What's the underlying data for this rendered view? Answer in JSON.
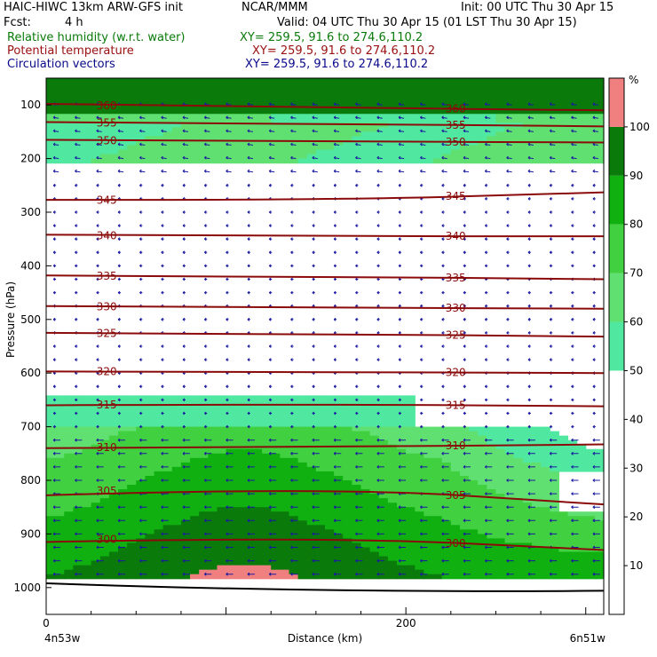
{
  "header": {
    "model": "HAIC-HIWC 13km ARW-GFS init",
    "org": "NCAR/MMM",
    "init": "Init: 00 UTC Thu 30 Apr 15",
    "fcst_label": "Fcst:",
    "fcst_value": "4 h",
    "valid": "Valid: 04 UTC Thu 30 Apr 15 (01 LST Thu 30 Apr 15)",
    "fields": [
      {
        "name": "Relative humidity (w.r.t. water)",
        "xy": "XY= 259.5, 91.6 to 274.6,110.2",
        "color": "#0a7a0a"
      },
      {
        "name": "Potential temperature",
        "xy": "XY= 259.5, 91.6 to 274.6,110.2",
        "color": "#9a1010"
      },
      {
        "name": "Circulation vectors",
        "xy": "XY= 259.5, 91.6 to 274.6,110.2",
        "color": "#0a0a8a"
      }
    ]
  },
  "chart_data": {
    "type": "cross-section",
    "title": "HAIC-HIWC 13km ARW-GFS init",
    "xlabel": "Distance (km)",
    "ylabel": "Pressure (hPa)",
    "xlim": [
      0,
      310
    ],
    "ylim": [
      50,
      1050
    ],
    "x_ticks": [
      0,
      200
    ],
    "y_ticks": [
      100,
      200,
      300,
      400,
      500,
      600,
      700,
      800,
      900,
      1000
    ],
    "x_end_labels": {
      "left": "4n53w",
      "right": "6n51w"
    },
    "colorbar": {
      "unit": "%",
      "ticks": [
        10,
        20,
        30,
        40,
        50,
        60,
        70,
        80,
        90,
        100
      ],
      "levels": [
        {
          "min": 0,
          "max": 50,
          "color": "#ffffff"
        },
        {
          "min": 50,
          "max": 60,
          "color": "#50e8a0"
        },
        {
          "min": 60,
          "max": 70,
          "color": "#60e070"
        },
        {
          "min": 70,
          "max": 80,
          "color": "#40d040"
        },
        {
          "min": 80,
          "max": 90,
          "color": "#10b010"
        },
        {
          "min": 90,
          "max": 100,
          "color": "#0a7a0a"
        },
        {
          "min": 100,
          "max": 110,
          "color": "#f08080"
        }
      ]
    },
    "theta_contours": [
      {
        "label": "360",
        "p": [
          98,
          105,
          110
        ]
      },
      {
        "label": "355",
        "p": [
          132,
          135,
          140
        ]
      },
      {
        "label": "350",
        "p": [
          165,
          168,
          170
        ]
      },
      {
        "label": "345",
        "p": [
          277,
          278,
          263
        ]
      },
      {
        "label": "340",
        "p": [
          342,
          345,
          345
        ]
      },
      {
        "label": "335",
        "p": [
          418,
          420,
          425
        ]
      },
      {
        "label": "330",
        "p": [
          475,
          478,
          480
        ]
      },
      {
        "label": "325",
        "p": [
          525,
          527,
          532
        ]
      },
      {
        "label": "320",
        "p": [
          597,
          598,
          600
        ]
      },
      {
        "label": "315",
        "p": [
          660,
          658,
          662
        ]
      },
      {
        "label": "310",
        "p": [
          740,
          738,
          733
        ]
      },
      {
        "label": "305",
        "p": [
          828,
          812,
          845
        ]
      },
      {
        "label": "300",
        "p": [
          915,
          905,
          930
        ]
      }
    ]
  }
}
